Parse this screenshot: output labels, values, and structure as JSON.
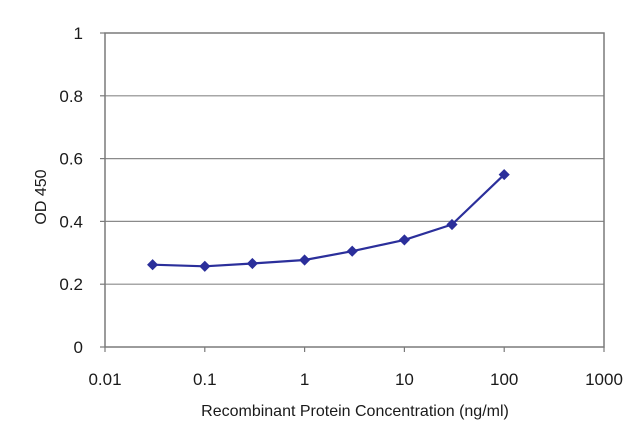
{
  "chart_data": {
    "type": "line",
    "title": "",
    "xlabel": "Recombinant Protein Concentration (ng/ml)",
    "ylabel": "OD 450",
    "x_scale": "log",
    "xlim": [
      0.01,
      1000
    ],
    "ylim": [
      0,
      1
    ],
    "x_ticks": [
      0.01,
      0.1,
      1,
      10,
      100,
      1000
    ],
    "x_tick_labels": [
      "0.01",
      "0.1",
      "1",
      "10",
      "100",
      "1000"
    ],
    "y_ticks": [
      0,
      0.2,
      0.4,
      0.6,
      0.8,
      1
    ],
    "y_tick_labels": [
      "0",
      "0.2",
      "0.4",
      "0.6",
      "0.8",
      "1"
    ],
    "grid": "horizontal",
    "legend": "none",
    "series": [
      {
        "x": [
          0.03,
          0.1,
          0.3,
          1,
          3,
          10,
          30,
          100
        ],
        "y": [
          0.262,
          0.257,
          0.266,
          0.277,
          0.305,
          0.341,
          0.39,
          0.549
        ],
        "color": "#2b2f9b",
        "marker": "diamond"
      }
    ]
  }
}
